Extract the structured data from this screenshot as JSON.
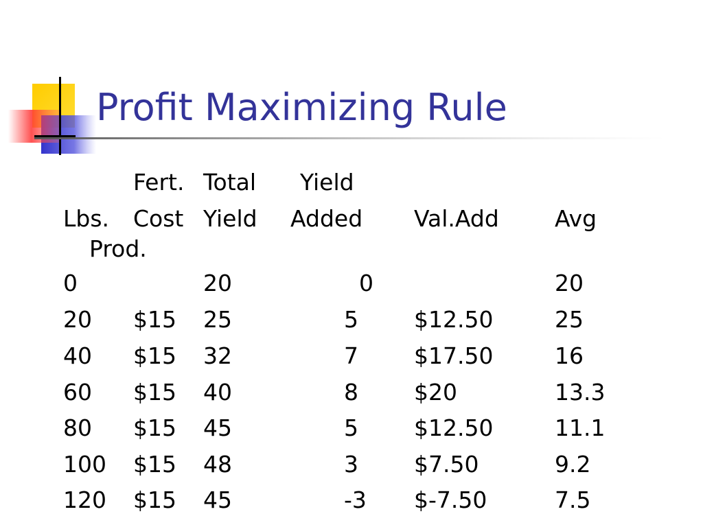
{
  "slide": {
    "title": "Profit Maximizing Rule"
  },
  "table": {
    "header_top": {
      "cost": "Fert.",
      "yield": "Total",
      "added": "Yield"
    },
    "header_main": {
      "lbs": "Lbs.",
      "cost": "Cost",
      "yield": "Yield",
      "added": "Added",
      "val": "Val.Add",
      "avg": "Avg"
    },
    "header_wrap": "Prod.",
    "rows": [
      {
        "lbs": "0",
        "cost": "",
        "yield": "20",
        "added": "0",
        "val": "",
        "avg": "20"
      },
      {
        "lbs": "20",
        "cost": "$15",
        "yield": "25",
        "added": "5",
        "val": "$12.50",
        "avg": "25"
      },
      {
        "lbs": "40",
        "cost": "$15",
        "yield": "32",
        "added": "7",
        "val": "$17.50",
        "avg": "16"
      },
      {
        "lbs": "60",
        "cost": "$15",
        "yield": "40",
        "added": "8",
        "val": "$20",
        "avg": "13.3"
      },
      {
        "lbs": "80",
        "cost": "$15",
        "yield": "45",
        "added": "5",
        "val": "$12.50",
        "avg": "11.1"
      },
      {
        "lbs": "100",
        "cost": "$15",
        "yield": "48",
        "added": "3",
        "val": "$7.50",
        "avg": "9.2"
      },
      {
        "lbs": "120",
        "cost": "$15",
        "yield": "45",
        "added": "-3",
        "val": "$-7.50",
        "avg": "7.5"
      }
    ]
  },
  "colors": {
    "title": "#333399",
    "logo_yellow": "#ffcc00",
    "logo_red": "#ff3333",
    "logo_blue": "#3333cc"
  }
}
